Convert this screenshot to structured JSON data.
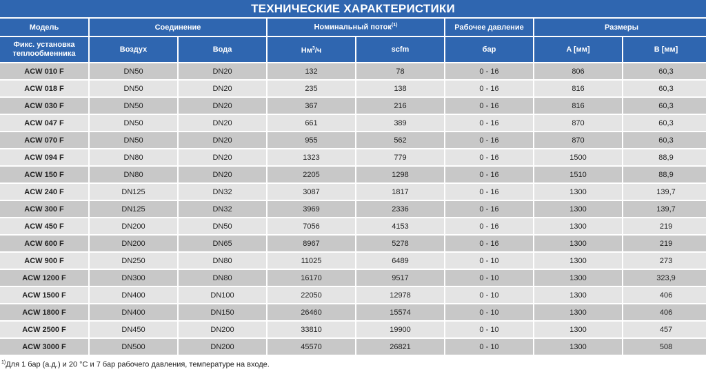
{
  "title": "ТЕХНИЧЕСКИЕ ХАРАКТЕРИСТИКИ",
  "headers": {
    "model": "Модель",
    "connection": "Соединение",
    "flow": "Номинальный поток",
    "flow_sup": "(1)",
    "pressure": "Рабочее давление",
    "dimensions": "Размеры",
    "install": "Фикс. установка теплообменника",
    "air": "Воздух",
    "water": "Вода",
    "nm3": "Нм",
    "nm3_sup": "3",
    "nm3_tail": "/ч",
    "scfm": "scfm",
    "bar": "бар",
    "a": "A [мм]",
    "b": "B [мм]"
  },
  "rows": [
    [
      "ACW 010 F",
      "DN50",
      "DN20",
      "132",
      "78",
      "0 - 16",
      "806",
      "60,3"
    ],
    [
      "ACW 018 F",
      "DN50",
      "DN20",
      "235",
      "138",
      "0 - 16",
      "816",
      "60,3"
    ],
    [
      "ACW 030 F",
      "DN50",
      "DN20",
      "367",
      "216",
      "0 - 16",
      "816",
      "60,3"
    ],
    [
      "ACW 047 F",
      "DN50",
      "DN20",
      "661",
      "389",
      "0 - 16",
      "870",
      "60,3"
    ],
    [
      "ACW 070 F",
      "DN50",
      "DN20",
      "955",
      "562",
      "0 - 16",
      "870",
      "60,3"
    ],
    [
      "ACW 094 F",
      "DN80",
      "DN20",
      "1323",
      "779",
      "0 - 16",
      "1500",
      "88,9"
    ],
    [
      "ACW 150 F",
      "DN80",
      "DN20",
      "2205",
      "1298",
      "0 - 16",
      "1510",
      "88,9"
    ],
    [
      "ACW 240 F",
      "DN125",
      "DN32",
      "3087",
      "1817",
      "0 - 16",
      "1300",
      "139,7"
    ],
    [
      "ACW 300 F",
      "DN125",
      "DN32",
      "3969",
      "2336",
      "0 - 16",
      "1300",
      "139,7"
    ],
    [
      "ACW 450 F",
      "DN200",
      "DN50",
      "7056",
      "4153",
      "0 - 16",
      "1300",
      "219"
    ],
    [
      "ACW 600 F",
      "DN200",
      "DN65",
      "8967",
      "5278",
      "0 - 16",
      "1300",
      "219"
    ],
    [
      "ACW 900 F",
      "DN250",
      "DN80",
      "11025",
      "6489",
      "0 - 10",
      "1300",
      "273"
    ],
    [
      "ACW 1200 F",
      "DN300",
      "DN80",
      "16170",
      "9517",
      "0 - 10",
      "1300",
      "323,9"
    ],
    [
      "ACW 1500 F",
      "DN400",
      "DN100",
      "22050",
      "12978",
      "0 - 10",
      "1300",
      "406"
    ],
    [
      "ACW 1800 F",
      "DN400",
      "DN150",
      "26460",
      "15574",
      "0 - 10",
      "1300",
      "406"
    ],
    [
      "ACW 2500 F",
      "DN450",
      "DN200",
      "33810",
      "19900",
      "0 - 10",
      "1300",
      "457"
    ],
    [
      "ACW 3000 F",
      "DN500",
      "DN200",
      "45570",
      "26821",
      "0 - 10",
      "1300",
      "508"
    ]
  ],
  "footnote": {
    "sup": "1)",
    "text": "Для 1 бар (а.д.) и 20 °C и 7 бар рабочего давления, температуре на входе."
  }
}
